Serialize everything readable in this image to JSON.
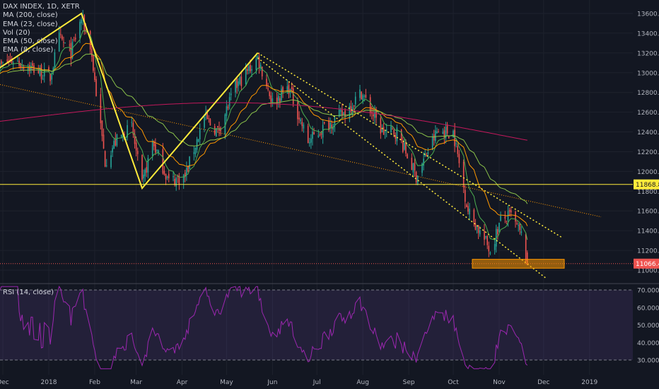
{
  "chart_data": {
    "type": "candlestick",
    "title": "DAX INDEX, 1D, XETR",
    "indicators": [
      "MA (200, close)",
      "EMA (23, close)",
      "Vol (20)",
      "EMA (50, close)",
      "EMA (8, close)"
    ],
    "rsi_label": "RSI (14, close)",
    "y_ticks": [
      "13600.00",
      "13400.00",
      "13200.00",
      "13000.00",
      "12800.00",
      "12600.00",
      "12400.00",
      "12200.00",
      "12000.00",
      "11800.00",
      "11600.00",
      "11400.00",
      "11200.00",
      "11000.00"
    ],
    "rsi_ticks": [
      "70.0000",
      "60.0000",
      "50.0000",
      "40.0000",
      "30.0000"
    ],
    "x_ticks": [
      "Dec",
      "2018",
      "Feb",
      "Mar",
      "Apr",
      "May",
      "Jun",
      "Jul",
      "Aug",
      "Sep",
      "Oct",
      "Nov",
      "Dec",
      "2019"
    ],
    "price_labels": {
      "support": "11868.84",
      "last": "11066.41"
    },
    "ylim": [
      10960,
      13680
    ],
    "rsi_ylim": [
      25,
      72
    ],
    "swing_points": [
      {
        "date": "2017-11-24",
        "price": 13000
      },
      {
        "date": "2018-01-23",
        "price": 13600
      },
      {
        "date": "2018-03-05",
        "price": 11830
      },
      {
        "date": "2018-05-22",
        "price": 13200
      }
    ],
    "support_level": 11868.84,
    "last_price": 11066.41,
    "approx_close": [
      [
        "2017-11-27",
        13050
      ],
      [
        "2017-12-08",
        13130
      ],
      [
        "2017-12-20",
        13050
      ],
      [
        "2018-01-02",
        12950
      ],
      [
        "2018-01-08",
        13350
      ],
      [
        "2018-01-16",
        13200
      ],
      [
        "2018-01-23",
        13550
      ],
      [
        "2018-01-29",
        13280
      ],
      [
        "2018-02-02",
        12800
      ],
      [
        "2018-02-08",
        12100
      ],
      [
        "2018-02-15",
        12300
      ],
      [
        "2018-02-26",
        12450
      ],
      [
        "2018-03-05",
        11850
      ],
      [
        "2018-03-12",
        12300
      ],
      [
        "2018-03-23",
        11900
      ],
      [
        "2018-04-03",
        11950
      ],
      [
        "2018-04-16",
        12550
      ],
      [
        "2018-04-25",
        12400
      ],
      [
        "2018-05-07",
        12850
      ],
      [
        "2018-05-22",
        13150
      ],
      [
        "2018-06-01",
        12700
      ],
      [
        "2018-06-12",
        12850
      ],
      [
        "2018-06-25",
        12300
      ],
      [
        "2018-07-06",
        12450
      ],
      [
        "2018-07-20",
        12600
      ],
      [
        "2018-07-31",
        12800
      ],
      [
        "2018-08-14",
        12400
      ],
      [
        "2018-08-24",
        12400
      ],
      [
        "2018-09-06",
        11950
      ],
      [
        "2018-09-20",
        12400
      ],
      [
        "2018-10-01",
        12400
      ],
      [
        "2018-10-11",
        11600
      ],
      [
        "2018-10-26",
        11200
      ],
      [
        "2018-11-02",
        11500
      ],
      [
        "2018-11-09",
        11550
      ],
      [
        "2018-11-16",
        11350
      ],
      [
        "2018-11-20",
        11066
      ]
    ]
  }
}
